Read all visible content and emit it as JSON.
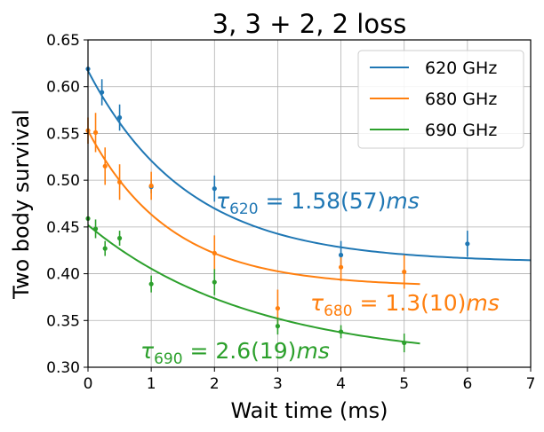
{
  "chart_data": {
    "type": "scatter",
    "title": "3, 3 + 2, 2 loss",
    "xlabel": "Wait time (ms)",
    "ylabel": "Two body survival",
    "xlim": [
      0,
      7
    ],
    "ylim": [
      0.3,
      0.65
    ],
    "xticks": [
      "0",
      "1",
      "2",
      "3",
      "4",
      "5",
      "6",
      "7"
    ],
    "yticks": [
      "0.30",
      "0.35",
      "0.40",
      "0.45",
      "0.50",
      "0.55",
      "0.60",
      "0.65"
    ],
    "grid": true,
    "legend_position": "top-right",
    "series": [
      {
        "name": "620 GHz",
        "color": "#1f77b4",
        "points": [
          {
            "x": 0.0,
            "y": 0.619,
            "err": 0.0
          },
          {
            "x": 0.22,
            "y": 0.594,
            "err": 0.014
          },
          {
            "x": 0.5,
            "y": 0.567,
            "err": 0.014
          },
          {
            "x": 1.0,
            "y": 0.493,
            "err": 0.007
          },
          {
            "x": 2.0,
            "y": 0.491,
            "err": 0.014
          },
          {
            "x": 4.0,
            "y": 0.42,
            "err": 0.015
          },
          {
            "x": 6.0,
            "y": 0.432,
            "err": 0.014
          }
        ],
        "fit": {
          "A": 0.205,
          "tau": 1.58,
          "C": 0.412,
          "x_end": 7.0
        },
        "annotation": {
          "base": "τ",
          "sub": "620",
          "rest": " = 1.58(57)",
          "unit": "ms"
        }
      },
      {
        "name": "680 GHz",
        "color": "#ff7f0e",
        "points": [
          {
            "x": 0.0,
            "y": 0.553,
            "err": 0.014
          },
          {
            "x": 0.12,
            "y": 0.551,
            "err": 0.021
          },
          {
            "x": 0.27,
            "y": 0.515,
            "err": 0.02
          },
          {
            "x": 0.5,
            "y": 0.498,
            "err": 0.019
          },
          {
            "x": 1.0,
            "y": 0.494,
            "err": 0.015
          },
          {
            "x": 2.0,
            "y": 0.422,
            "err": 0.019
          },
          {
            "x": 3.0,
            "y": 0.363,
            "err": 0.02
          },
          {
            "x": 4.0,
            "y": 0.407,
            "err": 0.015
          },
          {
            "x": 5.0,
            "y": 0.402,
            "err": 0.018
          }
        ],
        "fit": {
          "A": 0.167,
          "tau": 1.3,
          "C": 0.386,
          "x_end": 5.25
        },
        "annotation": {
          "base": "τ",
          "sub": "680",
          "rest": " = 1.3(10)",
          "unit": "ms"
        }
      },
      {
        "name": "690 GHz",
        "color": "#2ca02c",
        "points": [
          {
            "x": 0.0,
            "y": 0.459,
            "err": 0.0
          },
          {
            "x": 0.12,
            "y": 0.448,
            "err": 0.01
          },
          {
            "x": 0.27,
            "y": 0.427,
            "err": 0.008
          },
          {
            "x": 0.5,
            "y": 0.438,
            "err": 0.008
          },
          {
            "x": 1.0,
            "y": 0.389,
            "err": 0.009
          },
          {
            "x": 2.0,
            "y": 0.391,
            "err": 0.014
          },
          {
            "x": 3.0,
            "y": 0.344,
            "err": 0.009
          },
          {
            "x": 4.0,
            "y": 0.338,
            "err": 0.007
          },
          {
            "x": 5.0,
            "y": 0.326,
            "err": 0.01
          }
        ],
        "fit": {
          "A": 0.146,
          "tau": 2.6,
          "C": 0.306,
          "x_end": 5.25
        },
        "annotation": {
          "base": "τ",
          "sub": "690",
          "rest": " = 2.6(19)",
          "unit": "ms"
        }
      }
    ]
  }
}
